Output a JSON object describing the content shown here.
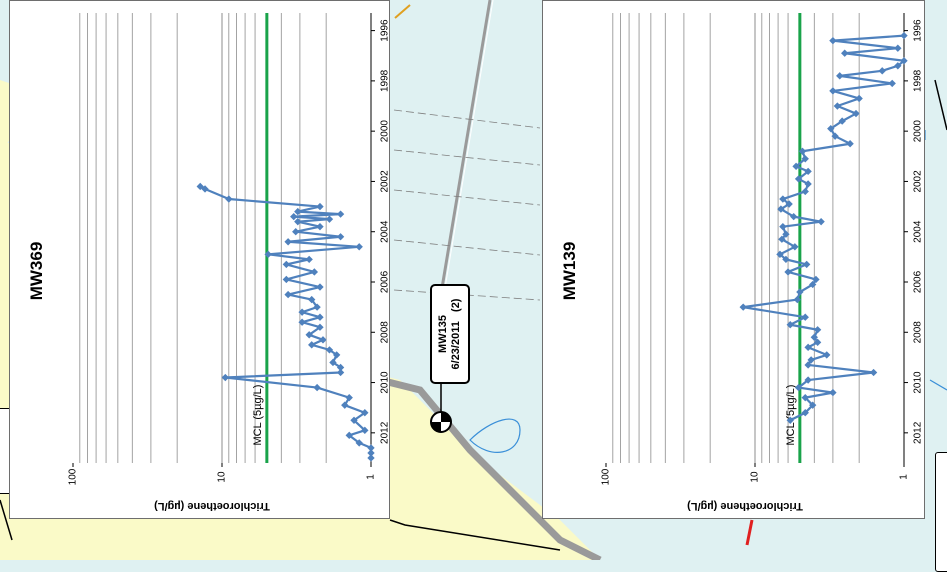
{
  "map": {
    "callout": {
      "well": "MW135",
      "date": "6/23/2011",
      "note": "(2)"
    },
    "colors": {
      "water": "#dff1f2",
      "land": "#fafac8",
      "road": "#9a9a9a",
      "pipe": "#e0a020"
    },
    "icons": [
      "well-symbol-icon"
    ]
  },
  "chart_data": [
    {
      "type": "line",
      "title": "MW369",
      "ylabel": "Trichloroethene (µg/L)",
      "x_ticks": [
        "1996",
        "1998",
        "2000",
        "2002",
        "2004",
        "2006",
        "2008",
        "2010",
        "2012"
      ],
      "xlim": [
        1995.3,
        2013.2
      ],
      "y_ticks": [
        "1",
        "10",
        "100"
      ],
      "ylim": [
        1,
        100
      ],
      "y_scale": "log",
      "grid": "y-minor",
      "mcl": {
        "label": "MCL (5µg/L)",
        "value": 5,
        "color": "#1aa34a"
      },
      "series_color": "#4f81bd",
      "series": [
        {
          "x": [
            2002.2,
            2002.3,
            2002.7,
            2003.0,
            2003.2,
            2003.3,
            2003.4,
            2003.5,
            2003.6,
            2003.8,
            2004.0,
            2004.2,
            2004.4,
            2004.6,
            2004.9,
            2005.1,
            2005.3,
            2005.6,
            2005.9,
            2006.2,
            2006.5,
            2006.7,
            2007.0,
            2007.2,
            2007.4,
            2007.6,
            2007.8,
            2008.1,
            2008.3,
            2008.5,
            2008.7,
            2008.9,
            2009.2,
            2009.4,
            2009.6,
            2009.8,
            2010.2,
            2010.6,
            2010.9,
            2011.2,
            2011.5,
            2011.9,
            2012.1,
            2012.4,
            2012.6,
            2012.8,
            2013.0
          ],
          "y": [
            14,
            13,
            9,
            2.2,
            3.1,
            1.6,
            3.3,
            1.9,
            3.1,
            2.2,
            3.2,
            1.6,
            3.6,
            1.2,
            4.9,
            2.6,
            3.7,
            2.4,
            3.7,
            2.2,
            3.6,
            2.5,
            2.3,
            2.9,
            2.2,
            2.9,
            2.2,
            2.6,
            2.1,
            2.5,
            1.9,
            1.7,
            1.8,
            1.6,
            1.6,
            9.5,
            2.3,
            1.4,
            1.5,
            1.1,
            1.3,
            1.1,
            1.4,
            1.2,
            1.0,
            1.0,
            1.0
          ]
        }
      ]
    },
    {
      "type": "line",
      "title": "MW139",
      "ylabel": "Trichloroethene (µg/L)",
      "x_ticks": [
        "1996",
        "1998",
        "2000",
        "2002",
        "2004",
        "2006",
        "2008",
        "2010",
        "2012"
      ],
      "xlim": [
        1995.3,
        2013.2
      ],
      "y_ticks": [
        "1",
        "10",
        "100"
      ],
      "ylim": [
        1,
        100
      ],
      "y_scale": "log",
      "grid": "y-minor",
      "mcl": {
        "label": "MCL (5µg/L)",
        "value": 5,
        "color": "#1aa34a"
      },
      "series_color": "#4f81bd",
      "series": [
        {
          "x": [
            1996.2,
            1996.4,
            1996.7,
            1996.9,
            1997.2,
            1997.4,
            1997.6,
            1997.8,
            1998.1,
            1998.4,
            1998.7,
            1999.0,
            1999.3,
            1999.6,
            1999.9,
            2000.2,
            2000.5,
            2000.8,
            2001.1,
            2001.4,
            2001.6,
            2001.9,
            2002.1,
            2002.4,
            2002.7,
            2002.9,
            2003.1,
            2003.4,
            2003.6,
            2003.8,
            2004.1,
            2004.3,
            2004.6,
            2004.9,
            2005.1,
            2005.3,
            2005.6,
            2005.9,
            2006.1,
            2006.4,
            2006.7,
            2007.0,
            2007.4,
            2007.7,
            2007.9,
            2008.2,
            2008.4,
            2008.6,
            2008.9,
            2009.1,
            2009.3,
            2009.6,
            2009.9,
            2010.2,
            2010.4,
            2010.6,
            2010.9,
            2011.2,
            2011.5
          ],
          "y": [
            1.0,
            3.0,
            1.1,
            2.5,
            1.0,
            1.1,
            1.4,
            2.7,
            1.2,
            3.0,
            2.0,
            2.8,
            2.1,
            2.6,
            3.1,
            2.9,
            2.3,
            4.8,
            4.6,
            5.3,
            4.4,
            5.1,
            4.4,
            4.6,
            6.5,
            5.9,
            6.7,
            5.5,
            3.6,
            6.5,
            6.2,
            6.6,
            5.4,
            6.8,
            6.2,
            4.5,
            6.0,
            3.9,
            4.1,
            5.0,
            5.2,
            12,
            4.6,
            5.8,
            3.8,
            4.0,
            3.8,
            4.4,
            3.3,
            4.2,
            4.4,
            1.6,
            4.4,
            5.1,
            3.0,
            4.6,
            4.1,
            4.6,
            5.8
          ]
        }
      ]
    }
  ]
}
